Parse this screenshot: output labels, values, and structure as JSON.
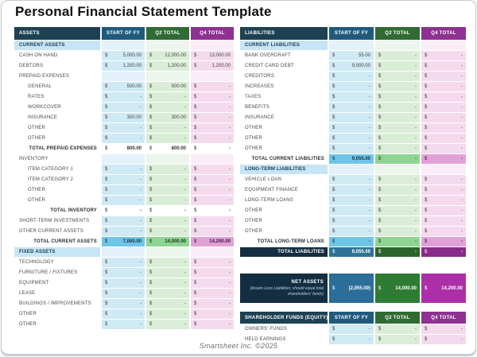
{
  "title": "Personal Financial Statement Template",
  "footer": "Smartsheet Inc. ©2025",
  "currency_symbol": "$",
  "colors": {
    "header_navy": "#1d4153",
    "header_blue": "#1f5a7d",
    "header_green": "#2f6b33",
    "header_purple": "#8e3190",
    "grand_navy": "#132e42",
    "net_magenta": "#ad2fa8",
    "tint_blue": "#cfe9f5",
    "tint_green": "#daeed7",
    "tint_pink": "#f5daee"
  },
  "assets_table": {
    "columns": [
      "ASSETS",
      "START OF FY",
      "Q2 TOTAL",
      "Q4 TOTAL"
    ],
    "rows": [
      {
        "type": "section",
        "label": "CURRENT ASSETS"
      },
      {
        "type": "data",
        "label": "CASH ON HAND",
        "values": [
          "5,000.00",
          "12,000.00",
          "13,000.00"
        ]
      },
      {
        "type": "data",
        "label": "DEBTORS",
        "values": [
          "1,200.00",
          "1,200.00",
          "1,200.00"
        ]
      },
      {
        "type": "sub",
        "label": "PREPAID EXPENSES"
      },
      {
        "type": "indent",
        "label": "GENERAL",
        "values": [
          "500.00",
          "500.00",
          "-"
        ]
      },
      {
        "type": "indent",
        "label": "RATES",
        "values": [
          "-",
          "-",
          "-"
        ]
      },
      {
        "type": "indent",
        "label": "WORKCOVER",
        "values": [
          "-",
          "-",
          "-"
        ]
      },
      {
        "type": "indent",
        "label": "INSURANCE",
        "values": [
          "300.00",
          "300.00",
          "-"
        ]
      },
      {
        "type": "indent",
        "label": "OTHER",
        "values": [
          "-",
          "-",
          "-"
        ]
      },
      {
        "type": "indent",
        "label": "OTHER",
        "values": [
          "-",
          "-",
          "-"
        ]
      },
      {
        "type": "subtotal",
        "label": "TOTAL PREPAID EXPENSES",
        "values": [
          "800.00",
          "800.00",
          "-"
        ]
      },
      {
        "type": "sub",
        "label": "INVENTORY"
      },
      {
        "type": "indent",
        "label": "ITEM CATEGORY 1",
        "values": [
          "-",
          "-",
          "-"
        ]
      },
      {
        "type": "indent",
        "label": "ITEM CATEGORY 2",
        "values": [
          "-",
          "-",
          "-"
        ]
      },
      {
        "type": "indent",
        "label": "OTHER",
        "values": [
          "-",
          "-",
          "-"
        ]
      },
      {
        "type": "indent",
        "label": "OTHER",
        "values": [
          "-",
          "-",
          "-"
        ]
      },
      {
        "type": "subtotal",
        "label": "TOTAL INVENTORY",
        "values": [
          "-",
          "-",
          "-"
        ]
      },
      {
        "type": "data",
        "label": "SHORT-TERM INVESTMENTS",
        "values": [
          "-",
          "-",
          "-"
        ]
      },
      {
        "type": "data",
        "label": "OTHER CURRENT ASSETS",
        "values": [
          "-",
          "-",
          "-"
        ]
      },
      {
        "type": "total",
        "label": "TOTAL CURRENT ASSETS",
        "values": [
          "7,000.00",
          "14,000.00",
          "14,200.00"
        ]
      },
      {
        "type": "section",
        "label": "FIXED ASSETS"
      },
      {
        "type": "data",
        "label": "TECHNOLOGY",
        "values": [
          "-",
          "-",
          "-"
        ]
      },
      {
        "type": "data",
        "label": "FURNITURE / FIXTURES",
        "values": [
          "-",
          "-",
          "-"
        ]
      },
      {
        "type": "data",
        "label": "EQUIPMENT",
        "values": [
          "-",
          "-",
          "-"
        ]
      },
      {
        "type": "data",
        "label": "LEASE",
        "values": [
          "-",
          "-",
          "-"
        ]
      },
      {
        "type": "data",
        "label": "BUILDINGS / IMPROVEMENTS",
        "values": [
          "-",
          "-",
          "-"
        ]
      },
      {
        "type": "data",
        "label": "OTHER",
        "values": [
          "-",
          "-",
          "-"
        ]
      },
      {
        "type": "data",
        "label": "OTHER",
        "values": [
          "-",
          "-",
          "-"
        ]
      }
    ]
  },
  "liabilities_table": {
    "columns": [
      "LIABILITIES",
      "START OF FY",
      "Q2 TOTAL",
      "Q4 TOTAL"
    ],
    "rows": [
      {
        "type": "section",
        "label": "CURRENT LIABILITIES"
      },
      {
        "type": "data",
        "label": "BANK OVERDRAFT",
        "values": [
          "55.00",
          "-",
          "-"
        ]
      },
      {
        "type": "data",
        "label": "CREDIT CARD DEBT",
        "values": [
          "9,000.00",
          "-",
          "-"
        ]
      },
      {
        "type": "data",
        "label": "CREDITORS",
        "values": [
          "-",
          "-",
          "-"
        ]
      },
      {
        "type": "data",
        "label": "INCREASES",
        "values": [
          "-",
          "-",
          "-"
        ]
      },
      {
        "type": "data",
        "label": "TAXES",
        "values": [
          "-",
          "-",
          "-"
        ]
      },
      {
        "type": "data",
        "label": "BENEFITS",
        "values": [
          "-",
          "-",
          "-"
        ]
      },
      {
        "type": "data",
        "label": "INSURANCE",
        "values": [
          "-",
          "-",
          "-"
        ]
      },
      {
        "type": "data",
        "label": "OTHER",
        "values": [
          "-",
          "-",
          "-"
        ]
      },
      {
        "type": "data",
        "label": "OTHER",
        "values": [
          "-",
          "-",
          "-"
        ]
      },
      {
        "type": "data",
        "label": "OTHER",
        "values": [
          "-",
          "-",
          "-"
        ]
      },
      {
        "type": "total",
        "label": "TOTAL CURRENT LIABILITIES",
        "values": [
          "9,055.00",
          "-",
          "-"
        ]
      },
      {
        "type": "section",
        "label": "LONG-TERM LIABILITIES"
      },
      {
        "type": "data",
        "label": "VEHICLE LOAN",
        "values": [
          "-",
          "-",
          "-"
        ]
      },
      {
        "type": "data",
        "label": "EQUIPMENT FINANCE",
        "values": [
          "-",
          "-",
          "-"
        ]
      },
      {
        "type": "data",
        "label": "LONG-TERM LOANS",
        "values": [
          "-",
          "-",
          "-"
        ]
      },
      {
        "type": "data",
        "label": "OTHER",
        "values": [
          "-",
          "-",
          "-"
        ]
      },
      {
        "type": "data",
        "label": "OTHER",
        "values": [
          "-",
          "-",
          "-"
        ]
      },
      {
        "type": "data",
        "label": "OTHER",
        "values": [
          "-",
          "-",
          "-"
        ]
      },
      {
        "type": "total",
        "label": "TOTAL LONG-TERM LOANS",
        "values": [
          "-",
          "-",
          "-"
        ]
      },
      {
        "type": "grand",
        "label": "TOTAL LIABILITIES",
        "values": [
          "9,055.00",
          "-",
          "-"
        ]
      }
    ]
  },
  "net_assets": {
    "label": "NET ASSETS",
    "note": "(Assets Less Liabilities; should equal total shareholders' funds)",
    "values": [
      "(2,055.00)",
      "14,000.00",
      "14,200.00"
    ]
  },
  "equity_table": {
    "columns": [
      "SHAREHOLDER FUNDS (EQUITY)",
      "START OF FY",
      "Q2 TOTAL",
      "Q4 TOTAL"
    ],
    "rows": [
      {
        "type": "data",
        "label": "OWNERS' FUNDS",
        "values": [
          "-",
          "-",
          "-"
        ]
      },
      {
        "type": "data",
        "label": "HELD EARNINGS",
        "values": [
          "-",
          "-",
          "-"
        ]
      }
    ]
  }
}
